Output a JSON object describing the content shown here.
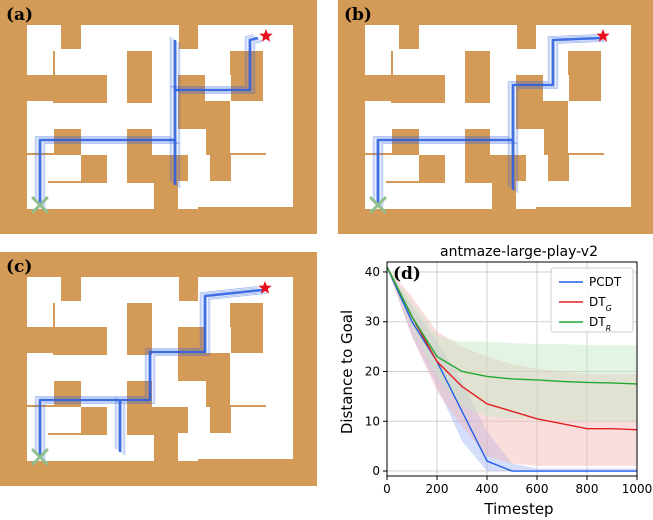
{
  "panels": [
    {
      "letter": "(a)"
    },
    {
      "letter": "(b)"
    },
    {
      "letter": "(c)"
    },
    {
      "letter": "(d)"
    }
  ],
  "colors": {
    "maze_wall": "#d39a58",
    "maze_floor": "#ffffff",
    "trajectory": "#2a5fe0",
    "goal_star": "#e8101f",
    "start_marker": "#8fbf8f"
  },
  "chart_data": {
    "type": "line",
    "title": "antmaze-large-play-v2",
    "xlabel": "Timestep",
    "ylabel": "Distance to Goal",
    "xlim": [
      0,
      1000
    ],
    "ylim": [
      -1,
      42
    ],
    "xticks": [
      0,
      200,
      400,
      600,
      800,
      1000
    ],
    "yticks": [
      0,
      10,
      20,
      30,
      40
    ],
    "grid": true,
    "legend_position": "top-right",
    "x": [
      0,
      100,
      200,
      300,
      400,
      500,
      600,
      700,
      800,
      900,
      1000
    ],
    "series": [
      {
        "name": "PCDT",
        "legend_base": "PCDT",
        "legend_sub": "",
        "color": "#1f5fe6",
        "fill": "#9fb5f5",
        "values": [
          41,
          30,
          22,
          12,
          2,
          0,
          0,
          0,
          0,
          0,
          0
        ],
        "lower": [
          41,
          27,
          17,
          6,
          0,
          0,
          0,
          0,
          0,
          0,
          0
        ],
        "upper": [
          41,
          33,
          26,
          18,
          8,
          1.5,
          0.5,
          0.5,
          0.5,
          0.5,
          0.5
        ]
      },
      {
        "name": "DTG",
        "legend_base": "DT",
        "legend_sub": "G",
        "color": "#e02020",
        "fill": "#f5b5b5",
        "values": [
          41,
          31,
          22,
          17,
          13.5,
          12,
          10.5,
          9.5,
          8.5,
          8.5,
          8.3
        ],
        "lower": [
          41,
          27,
          16,
          9,
          3,
          1.5,
          1,
          1,
          1,
          1,
          1
        ],
        "upper": [
          41,
          35,
          28,
          25,
          23,
          21.5,
          20.5,
          20,
          19.5,
          19.5,
          19.5
        ]
      },
      {
        "name": "DTR",
        "legend_base": "DT",
        "legend_sub": "R",
        "color": "#22aa33",
        "fill": "#c3e6c3",
        "values": [
          41,
          31,
          23,
          20,
          19,
          18.5,
          18.3,
          18,
          17.8,
          17.7,
          17.5
        ],
        "lower": [
          41,
          29,
          19,
          13,
          11,
          10.5,
          10.5,
          10.2,
          10,
          10,
          10
        ],
        "upper": [
          41,
          34,
          27,
          26,
          26,
          25.7,
          25.5,
          25.5,
          25.3,
          25.3,
          25.3
        ]
      }
    ]
  }
}
